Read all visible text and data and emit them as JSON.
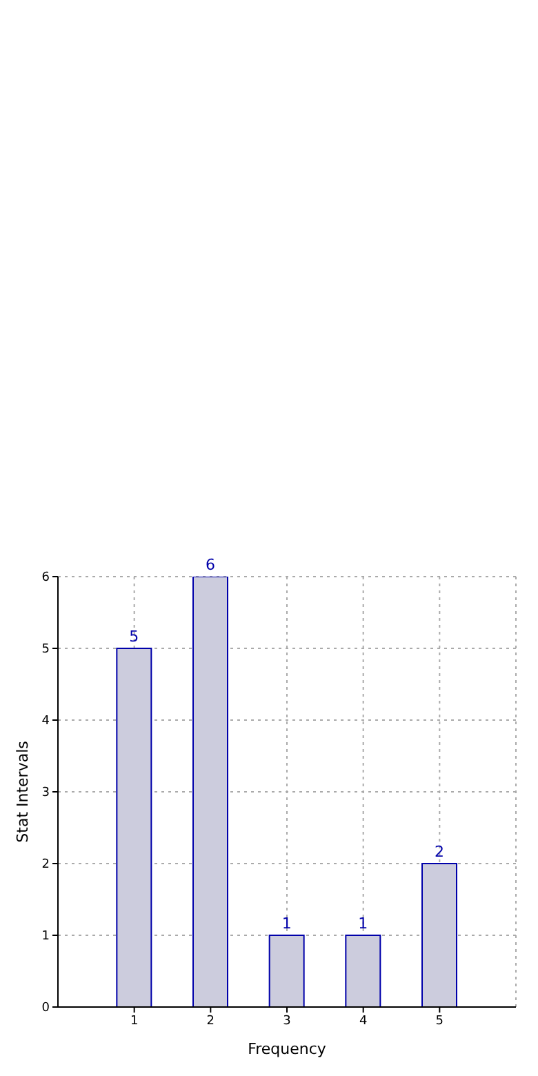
{
  "chart_data": {
    "type": "bar",
    "xlabel": "Frequency",
    "ylabel": "Stat Intervals",
    "x": [
      1,
      2,
      3,
      4,
      5
    ],
    "values": [
      5,
      6,
      1,
      1,
      2
    ],
    "color": "#ccccdd",
    "xlim": [
      0,
      6
    ],
    "xticks": [
      1,
      2,
      3,
      4,
      5
    ],
    "ylim": [
      0,
      6
    ],
    "yticks": [
      0,
      1,
      2,
      3,
      4,
      5,
      6
    ],
    "grid": true,
    "data_labels": true
  }
}
